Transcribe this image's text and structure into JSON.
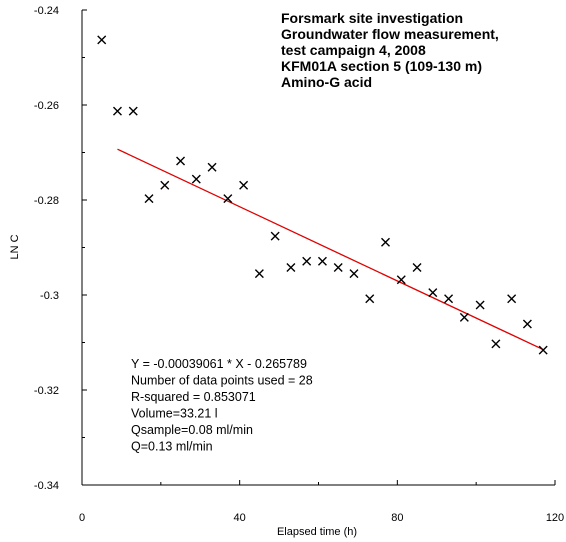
{
  "chart_data": {
    "type": "scatter",
    "title_lines": [
      "Forsmark site investigation",
      "Groundwater flow measurement,",
      "test campaign 4, 2008",
      "KFM01A section 5 (109-130 m)",
      "Amino-G acid"
    ],
    "xlabel": "Elapsed time (h)",
    "ylabel": "LN C",
    "xlim": [
      0,
      120
    ],
    "ylim": [
      -0.34,
      -0.24
    ],
    "x_ticks": [
      0,
      40,
      80,
      120
    ],
    "x_tick_labels": [
      "0",
      "40",
      "80",
      "120"
    ],
    "y_ticks": [
      -0.34,
      -0.32,
      -0.3,
      -0.28,
      -0.26,
      -0.24
    ],
    "y_tick_labels": [
      "-0.34",
      "-0.32",
      "-0.3",
      "-0.28",
      "-0.26",
      "-0.24"
    ],
    "grid": false,
    "points": [
      {
        "x": 5,
        "y": -0.2463
      },
      {
        "x": 9,
        "y": -0.2613
      },
      {
        "x": 13,
        "y": -0.2613
      },
      {
        "x": 17,
        "y": -0.2797
      },
      {
        "x": 21,
        "y": -0.2769
      },
      {
        "x": 25,
        "y": -0.2718
      },
      {
        "x": 29,
        "y": -0.2756
      },
      {
        "x": 33,
        "y": -0.2731
      },
      {
        "x": 37,
        "y": -0.2797
      },
      {
        "x": 41,
        "y": -0.2769
      },
      {
        "x": 45,
        "y": -0.2955
      },
      {
        "x": 49,
        "y": -0.2876
      },
      {
        "x": 53,
        "y": -0.2942
      },
      {
        "x": 57,
        "y": -0.2929
      },
      {
        "x": 61,
        "y": -0.2929
      },
      {
        "x": 65,
        "y": -0.2942
      },
      {
        "x": 69,
        "y": -0.2955
      },
      {
        "x": 73,
        "y": -0.3008
      },
      {
        "x": 77,
        "y": -0.2889
      },
      {
        "x": 81,
        "y": -0.2968
      },
      {
        "x": 85,
        "y": -0.2942
      },
      {
        "x": 89,
        "y": -0.2995
      },
      {
        "x": 93,
        "y": -0.3008
      },
      {
        "x": 97,
        "y": -0.3047
      },
      {
        "x": 101,
        "y": -0.3021
      },
      {
        "x": 105,
        "y": -0.3103
      },
      {
        "x": 109,
        "y": -0.3008
      },
      {
        "x": 113,
        "y": -0.3061
      },
      {
        "x": 117,
        "y": -0.3116
      }
    ],
    "fit_line": {
      "slope": -0.00039061,
      "intercept": -0.265789,
      "x_range": [
        9,
        117
      ],
      "color": "#e00000"
    },
    "marker_color": "#000000",
    "annotation_lines": [
      "Y = -0.00039061 * X - 0.265789",
      "Number of data points used = 28",
      "R-squared = 0.853071",
      "Volume=33.21 l",
      "Qsample=0.08 ml/min",
      "Q=0.13 ml/min"
    ]
  }
}
